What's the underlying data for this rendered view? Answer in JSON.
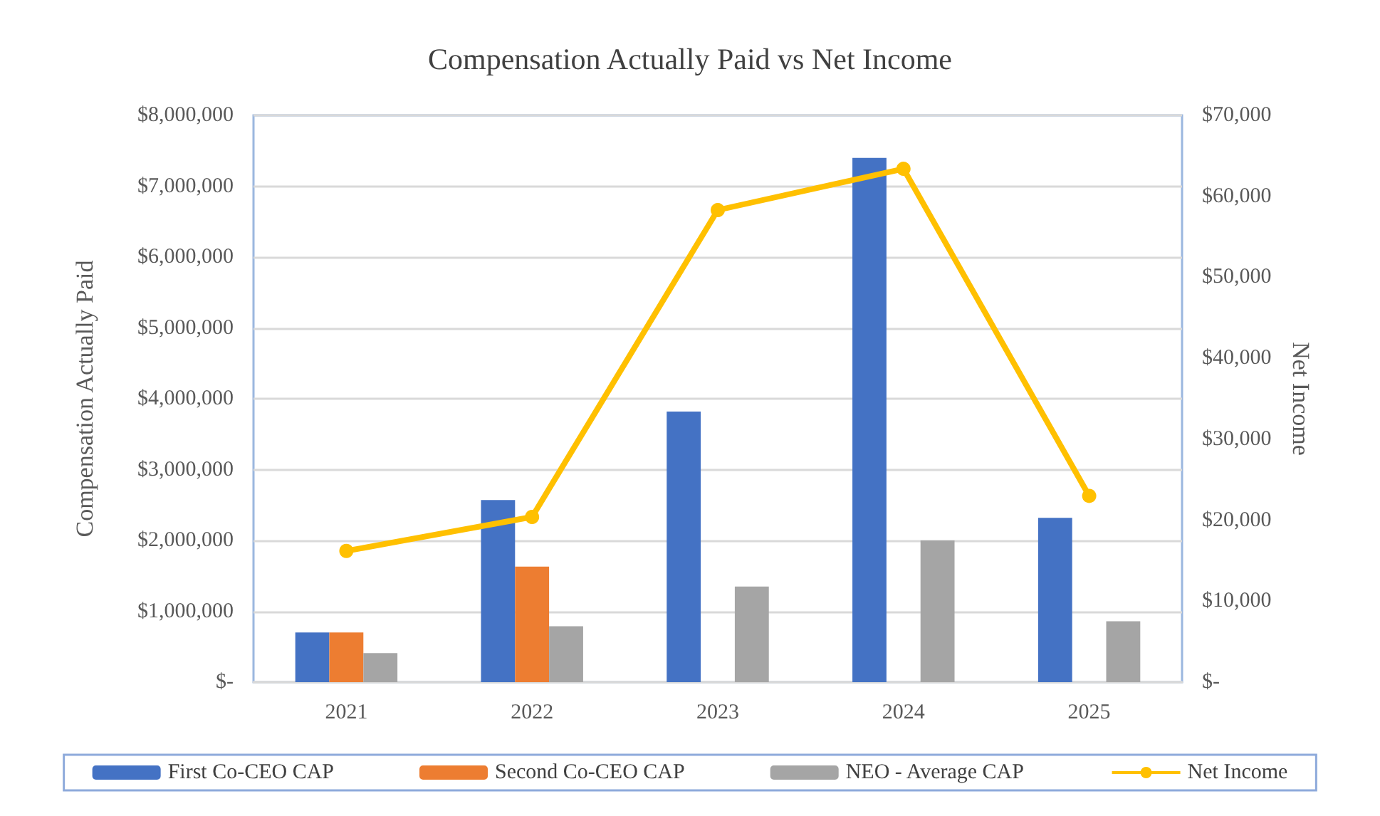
{
  "chart_data": {
    "type": "bar",
    "title": "Compensation Actually Paid vs Net Income",
    "ylabel": "Compensation Actually Paid",
    "y2label": "Net Income",
    "categories": [
      "2021",
      "2022",
      "2023",
      "2024",
      "2025"
    ],
    "series": [
      {
        "name": "First Co-CEO CAP",
        "color": "#4472c4",
        "values": [
          700000,
          2570000,
          3820000,
          7400000,
          2320000
        ]
      },
      {
        "name": "Second Co-CEO CAP",
        "color": "#ed7d31",
        "values": [
          700000,
          1630000,
          null,
          null,
          null
        ]
      },
      {
        "name": "NEO - Average CAP",
        "color": "#a5a5a5",
        "values": [
          410000,
          790000,
          1350000,
          2000000,
          860000
        ]
      },
      {
        "name": "Net Income",
        "type": "line",
        "axis": "y2",
        "color": "#ffc000",
        "marker": "circle",
        "values": [
          16200,
          20400,
          58300,
          63400,
          23000
        ]
      }
    ],
    "ylim": [
      0,
      8000000
    ],
    "yticks": [
      {
        "value": 0,
        "label": "$-"
      },
      {
        "value": 1000000,
        "label": "$1,000,000"
      },
      {
        "value": 2000000,
        "label": "$2,000,000"
      },
      {
        "value": 3000000,
        "label": "$3,000,000"
      },
      {
        "value": 4000000,
        "label": "$4,000,000"
      },
      {
        "value": 5000000,
        "label": "$5,000,000"
      },
      {
        "value": 6000000,
        "label": "$6,000,000"
      },
      {
        "value": 7000000,
        "label": "$7,000,000"
      },
      {
        "value": 8000000,
        "label": "$8,000,000"
      }
    ],
    "y2lim": [
      0,
      70000
    ],
    "y2ticks": [
      {
        "value": 0,
        "label": "$-"
      },
      {
        "value": 10000,
        "label": "$10,000"
      },
      {
        "value": 20000,
        "label": "$20,000"
      },
      {
        "value": 30000,
        "label": "$30,000"
      },
      {
        "value": 40000,
        "label": "$40,000"
      },
      {
        "value": 50000,
        "label": "$50,000"
      },
      {
        "value": 60000,
        "label": "$60,000"
      },
      {
        "value": 70000,
        "label": "$70,000"
      }
    ],
    "grid": "y",
    "legend": "bottom"
  }
}
